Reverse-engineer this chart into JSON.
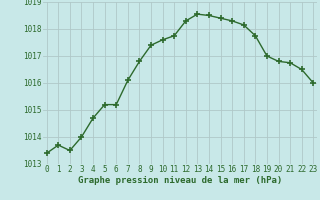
{
  "x": [
    0,
    1,
    2,
    3,
    4,
    5,
    6,
    7,
    8,
    9,
    10,
    11,
    12,
    13,
    14,
    15,
    16,
    17,
    18,
    19,
    20,
    21,
    22,
    23
  ],
  "y": [
    1013.4,
    1013.7,
    1013.5,
    1014.0,
    1014.7,
    1015.2,
    1015.2,
    1016.1,
    1016.8,
    1017.4,
    1017.6,
    1017.75,
    1018.3,
    1018.55,
    1018.5,
    1018.4,
    1018.3,
    1018.15,
    1017.75,
    1017.0,
    1016.8,
    1016.75,
    1016.5,
    1016.0
  ],
  "ylim": [
    1013.0,
    1019.0
  ],
  "yticks": [
    1013,
    1014,
    1015,
    1016,
    1017,
    1018,
    1019
  ],
  "xticks": [
    0,
    1,
    2,
    3,
    4,
    5,
    6,
    7,
    8,
    9,
    10,
    11,
    12,
    13,
    14,
    15,
    16,
    17,
    18,
    19,
    20,
    21,
    22,
    23
  ],
  "line_color": "#2d6a2d",
  "marker": "+",
  "marker_size": 4.0,
  "marker_lw": 1.2,
  "bg_color": "#c8e8e8",
  "grid_color": "#b0c8c8",
  "xlabel": "Graphe pression niveau de la mer (hPa)",
  "xlabel_color": "#2d6a2d",
  "tick_color": "#2d6a2d",
  "label_fontsize": 5.5,
  "xlabel_fontsize": 6.5,
  "line_width": 1.0
}
